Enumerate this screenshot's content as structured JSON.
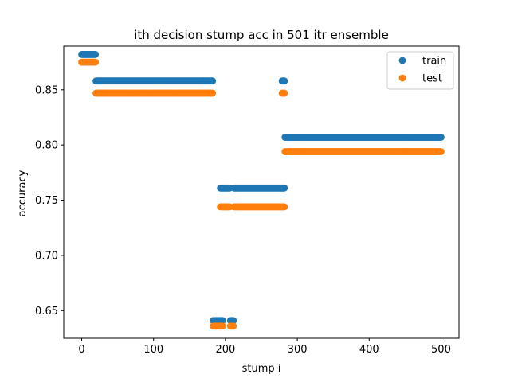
{
  "chart_data": {
    "type": "scatter",
    "title": "ith decision stump acc in 501 itr ensemble",
    "xlabel": "stump i",
    "ylabel": "accuracy",
    "xlim": [
      -25,
      525
    ],
    "ylim": [
      0.625,
      0.8895
    ],
    "xticks": [
      0,
      100,
      200,
      300,
      400,
      500
    ],
    "yticks": [
      0.65,
      0.7,
      0.75,
      0.8,
      0.85
    ],
    "ytick_labels": [
      "0.65",
      "0.70",
      "0.75",
      "0.80",
      "0.85"
    ],
    "legend_position": "top-right",
    "grid": false,
    "series": [
      {
        "name": "train",
        "color": "#1f77b4",
        "segments": [
          {
            "x_start": 0,
            "x_end": 20,
            "y": 0.882
          },
          {
            "x_start": 20,
            "x_end": 183,
            "y": 0.858
          },
          {
            "x_start": 183,
            "x_end": 197,
            "y": 0.641
          },
          {
            "x_start": 193,
            "x_end": 207,
            "y": 0.761
          },
          {
            "x_start": 207,
            "x_end": 212,
            "y": 0.641
          },
          {
            "x_start": 212,
            "x_end": 283,
            "y": 0.761
          },
          {
            "x_start": 279,
            "x_end": 283,
            "y": 0.858
          },
          {
            "x_start": 283,
            "x_end": 501,
            "y": 0.807
          }
        ]
      },
      {
        "name": "test",
        "color": "#ff7f0e",
        "segments": [
          {
            "x_start": 0,
            "x_end": 20,
            "y": 0.875
          },
          {
            "x_start": 20,
            "x_end": 183,
            "y": 0.847
          },
          {
            "x_start": 183,
            "x_end": 197,
            "y": 0.636
          },
          {
            "x_start": 193,
            "x_end": 207,
            "y": 0.744
          },
          {
            "x_start": 207,
            "x_end": 212,
            "y": 0.636
          },
          {
            "x_start": 212,
            "x_end": 283,
            "y": 0.744
          },
          {
            "x_start": 279,
            "x_end": 283,
            "y": 0.847
          },
          {
            "x_start": 283,
            "x_end": 501,
            "y": 0.794
          }
        ]
      }
    ]
  }
}
